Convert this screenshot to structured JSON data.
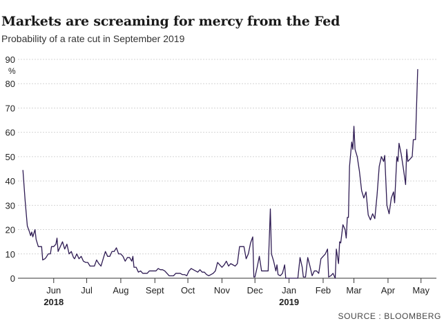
{
  "header": {
    "title": "Markets are screaming for mercy from the Fed",
    "subtitle": "Probability of a rate cut in September 2019"
  },
  "footer": {
    "source": "SOURCE : BLOOMBERG"
  },
  "chart_data": {
    "type": "line",
    "title": "Markets are screaming for mercy from the Fed",
    "subtitle": "Probability of a rate cut in September 2019",
    "ylabel": "%",
    "xlabel": "",
    "ylim": [
      0,
      90
    ],
    "yticks": [
      0,
      10,
      20,
      30,
      40,
      50,
      60,
      70,
      80,
      90
    ],
    "xlim": [
      "2018-05-02",
      "2019-05-15"
    ],
    "xticks": [
      {
        "date": "2018-06-01",
        "label": "Jun",
        "year": "2018"
      },
      {
        "date": "2018-07-01",
        "label": "Jul"
      },
      {
        "date": "2018-08-01",
        "label": "Aug"
      },
      {
        "date": "2018-09-01",
        "label": "Sept"
      },
      {
        "date": "2018-10-01",
        "label": "Oct"
      },
      {
        "date": "2018-11-01",
        "label": "Nov"
      },
      {
        "date": "2018-12-01",
        "label": "Dec"
      },
      {
        "date": "2019-01-01",
        "label": "Jan",
        "year": "2019"
      },
      {
        "date": "2019-02-01",
        "label": "Feb"
      },
      {
        "date": "2019-03-01",
        "label": "Mar"
      },
      {
        "date": "2019-04-01",
        "label": "Apr"
      },
      {
        "date": "2019-05-01",
        "label": "May"
      }
    ],
    "grid": true,
    "line_color": "#2d1a52",
    "series": [
      {
        "points": [
          [
            "2018-05-04",
            44.5
          ],
          [
            "2018-05-06",
            32
          ],
          [
            "2018-05-08",
            21.5
          ],
          [
            "2018-05-10",
            19
          ],
          [
            "2018-05-11",
            17.5
          ],
          [
            "2018-05-12",
            19
          ],
          [
            "2018-05-13",
            17
          ],
          [
            "2018-05-15",
            20
          ],
          [
            "2018-05-16",
            16
          ],
          [
            "2018-05-18",
            13
          ],
          [
            "2018-05-21",
            13
          ],
          [
            "2018-05-22",
            7.5
          ],
          [
            "2018-05-24",
            8
          ],
          [
            "2018-05-25",
            8.5
          ],
          [
            "2018-05-27",
            10
          ],
          [
            "2018-05-29",
            10
          ],
          [
            "2018-05-30",
            13
          ],
          [
            "2018-06-01",
            13
          ],
          [
            "2018-06-03",
            14
          ],
          [
            "2018-06-04",
            16.5
          ],
          [
            "2018-06-05",
            11
          ],
          [
            "2018-06-07",
            13
          ],
          [
            "2018-06-09",
            15
          ],
          [
            "2018-06-11",
            12
          ],
          [
            "2018-06-13",
            14
          ],
          [
            "2018-06-15",
            10
          ],
          [
            "2018-06-17",
            11
          ],
          [
            "2018-06-19",
            8.5
          ],
          [
            "2018-06-20",
            8
          ],
          [
            "2018-06-22",
            10
          ],
          [
            "2018-06-24",
            8
          ],
          [
            "2018-06-26",
            9
          ],
          [
            "2018-06-28",
            7
          ],
          [
            "2018-06-30",
            6.5
          ],
          [
            "2018-07-02",
            6.5
          ],
          [
            "2018-07-04",
            5
          ],
          [
            "2018-07-06",
            5
          ],
          [
            "2018-07-08",
            5
          ],
          [
            "2018-07-10",
            7.5
          ],
          [
            "2018-07-12",
            6
          ],
          [
            "2018-07-14",
            5
          ],
          [
            "2018-07-16",
            8
          ],
          [
            "2018-07-18",
            11
          ],
          [
            "2018-07-20",
            9
          ],
          [
            "2018-07-22",
            9
          ],
          [
            "2018-07-24",
            11
          ],
          [
            "2018-07-26",
            11
          ],
          [
            "2018-07-28",
            12.5
          ],
          [
            "2018-07-30",
            10
          ],
          [
            "2018-08-01",
            10
          ],
          [
            "2018-08-03",
            9
          ],
          [
            "2018-08-05",
            7
          ],
          [
            "2018-08-07",
            8.5
          ],
          [
            "2018-08-09",
            8.5
          ],
          [
            "2018-08-11",
            7
          ],
          [
            "2018-08-12",
            9
          ],
          [
            "2018-08-13",
            4.5
          ],
          [
            "2018-08-15",
            4.5
          ],
          [
            "2018-08-17",
            2.5
          ],
          [
            "2018-08-19",
            3
          ],
          [
            "2018-08-21",
            2
          ],
          [
            "2018-08-23",
            2
          ],
          [
            "2018-08-25",
            2
          ],
          [
            "2018-08-27",
            3
          ],
          [
            "2018-08-29",
            3
          ],
          [
            "2018-08-31",
            3
          ],
          [
            "2018-09-02",
            3
          ],
          [
            "2018-09-04",
            4
          ],
          [
            "2018-09-06",
            3.5
          ],
          [
            "2018-09-08",
            3.5
          ],
          [
            "2018-09-10",
            3
          ],
          [
            "2018-09-12",
            2
          ],
          [
            "2018-09-14",
            1
          ],
          [
            "2018-09-16",
            1
          ],
          [
            "2018-09-18",
            1
          ],
          [
            "2018-09-20",
            2
          ],
          [
            "2018-09-22",
            2
          ],
          [
            "2018-09-24",
            2
          ],
          [
            "2018-09-26",
            1.5
          ],
          [
            "2018-09-28",
            1.5
          ],
          [
            "2018-09-30",
            1
          ],
          [
            "2018-10-02",
            3
          ],
          [
            "2018-10-04",
            4
          ],
          [
            "2018-10-06",
            3.5
          ],
          [
            "2018-10-08",
            3
          ],
          [
            "2018-10-10",
            2.5
          ],
          [
            "2018-10-12",
            3.5
          ],
          [
            "2018-10-14",
            2.5
          ],
          [
            "2018-10-16",
            2.5
          ],
          [
            "2018-10-18",
            1.5
          ],
          [
            "2018-10-20",
            1
          ],
          [
            "2018-10-22",
            1.5
          ],
          [
            "2018-10-24",
            2
          ],
          [
            "2018-10-26",
            3
          ],
          [
            "2018-10-28",
            6.5
          ],
          [
            "2018-10-30",
            5.5
          ],
          [
            "2018-11-01",
            4.5
          ],
          [
            "2018-11-03",
            5.5
          ],
          [
            "2018-11-05",
            7
          ],
          [
            "2018-11-07",
            5
          ],
          [
            "2018-11-09",
            6
          ],
          [
            "2018-11-11",
            5.5
          ],
          [
            "2018-11-13",
            5
          ],
          [
            "2018-11-15",
            6
          ],
          [
            "2018-11-17",
            13
          ],
          [
            "2018-11-19",
            13
          ],
          [
            "2018-11-21",
            13
          ],
          [
            "2018-11-23",
            8
          ],
          [
            "2018-11-25",
            10
          ],
          [
            "2018-11-27",
            14.5
          ],
          [
            "2018-11-29",
            17
          ],
          [
            "2018-11-30",
            0.5
          ],
          [
            "2018-12-01",
            0.5
          ],
          [
            "2018-12-03",
            4.5
          ],
          [
            "2018-12-05",
            9
          ],
          [
            "2018-12-07",
            3
          ],
          [
            "2018-12-09",
            3
          ],
          [
            "2018-12-11",
            3
          ],
          [
            "2018-12-13",
            3
          ],
          [
            "2018-12-15",
            28.5
          ],
          [
            "2018-12-16",
            10
          ],
          [
            "2018-12-18",
            7
          ],
          [
            "2018-12-20",
            3
          ],
          [
            "2018-12-21",
            5.5
          ],
          [
            "2018-12-22",
            1.5
          ],
          [
            "2018-12-24",
            1
          ],
          [
            "2018-12-26",
            2
          ],
          [
            "2018-12-28",
            5.5
          ],
          [
            "2018-12-29",
            0
          ],
          [
            "2019-01-01",
            0
          ],
          [
            "2019-01-03",
            0
          ],
          [
            "2019-01-05",
            0
          ],
          [
            "2019-01-07",
            0
          ],
          [
            "2019-01-09",
            0
          ],
          [
            "2019-01-11",
            8.5
          ],
          [
            "2019-01-13",
            4.5
          ],
          [
            "2019-01-14",
            0.5
          ],
          [
            "2019-01-16",
            0.5
          ],
          [
            "2019-01-18",
            8.5
          ],
          [
            "2019-01-20",
            5
          ],
          [
            "2019-01-22",
            1
          ],
          [
            "2019-01-24",
            3
          ],
          [
            "2019-01-26",
            3
          ],
          [
            "2019-01-28",
            2
          ],
          [
            "2019-01-30",
            8
          ],
          [
            "2019-02-01",
            9
          ],
          [
            "2019-02-03",
            10
          ],
          [
            "2019-02-05",
            12
          ],
          [
            "2019-02-06",
            0.5
          ],
          [
            "2019-02-08",
            1
          ],
          [
            "2019-02-10",
            2
          ],
          [
            "2019-02-12",
            0
          ],
          [
            "2019-02-13",
            12
          ],
          [
            "2019-02-15",
            6
          ],
          [
            "2019-02-16",
            15
          ],
          [
            "2019-02-17",
            14.5
          ],
          [
            "2019-02-19",
            22
          ],
          [
            "2019-02-21",
            20
          ],
          [
            "2019-02-22",
            16.5
          ],
          [
            "2019-02-23",
            25
          ],
          [
            "2019-02-24",
            25
          ],
          [
            "2019-02-25",
            46
          ],
          [
            "2019-02-27",
            56
          ],
          [
            "2019-02-28",
            53
          ],
          [
            "2019-03-01",
            62.5
          ],
          [
            "2019-03-02",
            53
          ],
          [
            "2019-03-04",
            50
          ],
          [
            "2019-03-06",
            44
          ],
          [
            "2019-03-08",
            36
          ],
          [
            "2019-03-10",
            33
          ],
          [
            "2019-03-12",
            35.5
          ],
          [
            "2019-03-14",
            26
          ],
          [
            "2019-03-16",
            24
          ],
          [
            "2019-03-18",
            26.5
          ],
          [
            "2019-03-20",
            24.5
          ],
          [
            "2019-03-22",
            34
          ],
          [
            "2019-03-24",
            46
          ],
          [
            "2019-03-26",
            50
          ],
          [
            "2019-03-28",
            48
          ],
          [
            "2019-03-29",
            50.5
          ],
          [
            "2019-03-31",
            30
          ],
          [
            "2019-04-02",
            26.5
          ],
          [
            "2019-04-04",
            33
          ],
          [
            "2019-04-06",
            35.5
          ],
          [
            "2019-04-07",
            31
          ],
          [
            "2019-04-09",
            50
          ],
          [
            "2019-04-10",
            48
          ],
          [
            "2019-04-11",
            55.5
          ],
          [
            "2019-04-13",
            51
          ],
          [
            "2019-04-15",
            45
          ],
          [
            "2019-04-17",
            38.5
          ],
          [
            "2019-04-18",
            53
          ],
          [
            "2019-04-19",
            48
          ],
          [
            "2019-04-21",
            49
          ],
          [
            "2019-04-23",
            50
          ],
          [
            "2019-04-24",
            57
          ],
          [
            "2019-04-26",
            57
          ],
          [
            "2019-04-28",
            86
          ]
        ]
      }
    ]
  }
}
